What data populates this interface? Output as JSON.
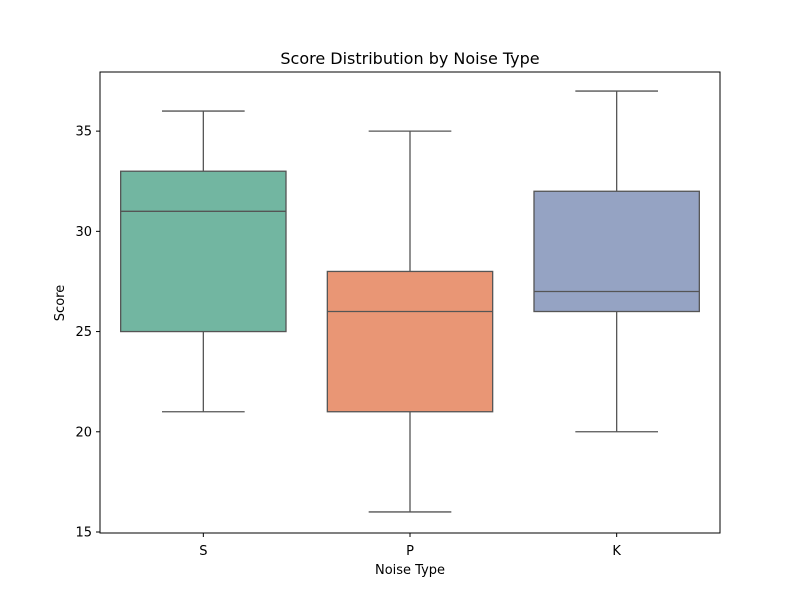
{
  "chart_data": {
    "type": "box",
    "title": "Score Distribution by Noise Type",
    "xlabel": "Noise Type",
    "ylabel": "Score",
    "ylim": [
      14.95,
      37.95
    ],
    "yticks": [
      15,
      20,
      25,
      30,
      35
    ],
    "grid": false,
    "categories": [
      "S",
      "P",
      "K"
    ],
    "boxes": [
      {
        "category": "S",
        "whisker_low": 21,
        "q1": 25,
        "median": 31,
        "q3": 33,
        "whisker_high": 36,
        "color": "#72b6a1"
      },
      {
        "category": "P",
        "whisker_low": 16,
        "q1": 21,
        "median": 26,
        "q3": 28,
        "whisker_high": 35,
        "color": "#e99675"
      },
      {
        "category": "K",
        "whisker_low": 20,
        "q1": 26,
        "median": 27,
        "q3": 32,
        "whisker_high": 37,
        "color": "#95a3c3"
      }
    ],
    "line_color": "#555555"
  }
}
